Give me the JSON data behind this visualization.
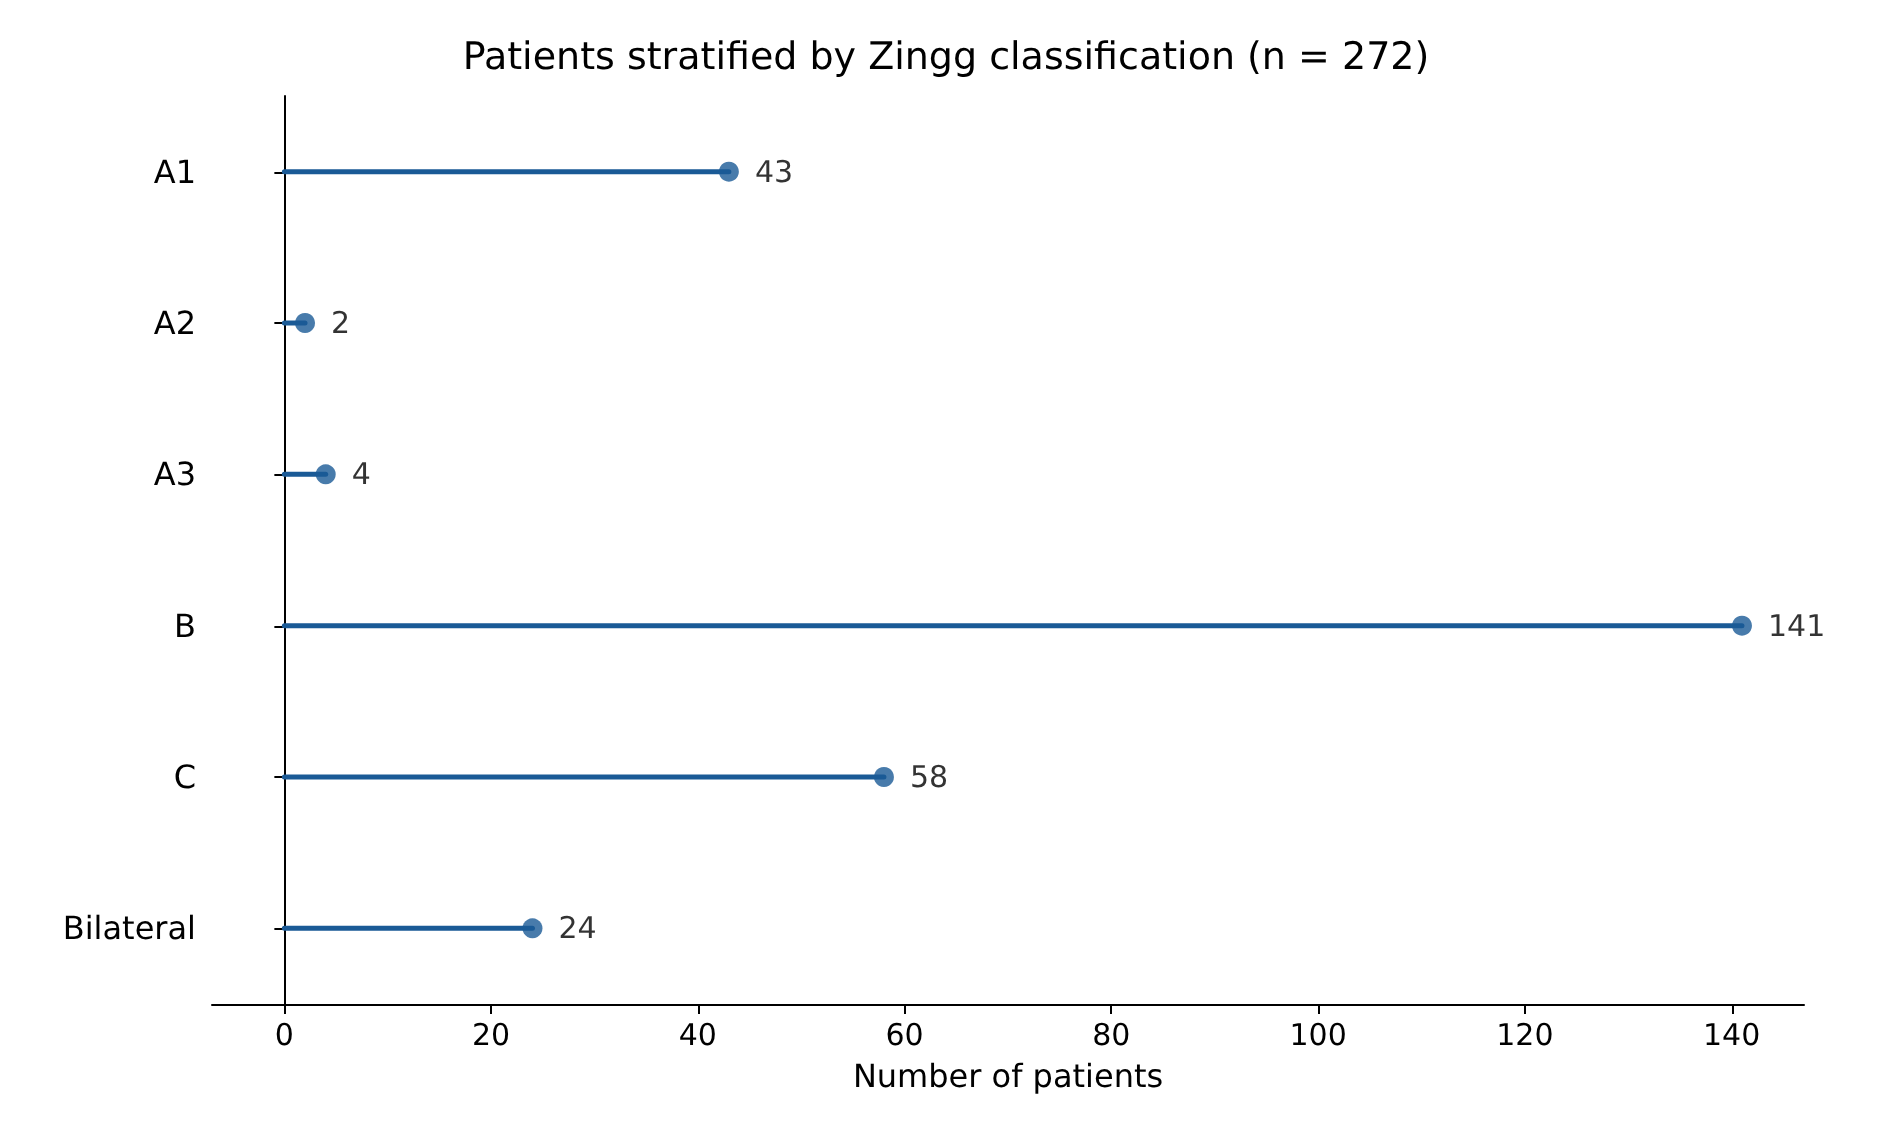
{
  "chart_data": {
    "type": "lollipop",
    "title": "Patients stratified by Zingg classification (n = 272)",
    "xlabel": "Number of patients",
    "orientation": "horizontal",
    "categories": [
      "A1",
      "A2",
      "A3",
      "B",
      "C",
      "Bilateral"
    ],
    "values": [
      43,
      2,
      4,
      141,
      58,
      24
    ],
    "color": "#1a5a96",
    "xlim": [
      -7,
      147
    ],
    "xticks": [
      0,
      20,
      40,
      60,
      80,
      100,
      120,
      140
    ],
    "grid": false,
    "marker": "circle",
    "data_labels": true
  }
}
